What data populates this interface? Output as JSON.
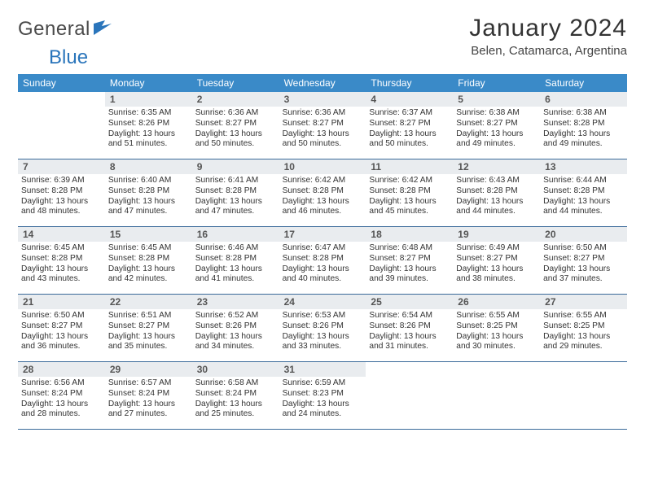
{
  "brand": {
    "part1": "General",
    "part2": "Blue"
  },
  "title": "January 2024",
  "location": "Belen, Catamarca, Argentina",
  "colors": {
    "header_bar": "#3a8ac8",
    "week_divider": "#3a6a9a",
    "daynum_bg": "#e9ecef",
    "text": "#333333",
    "brand_gray": "#4a4a4a",
    "brand_blue": "#2a75bb",
    "background": "#ffffff"
  },
  "weekdays": [
    "Sunday",
    "Monday",
    "Tuesday",
    "Wednesday",
    "Thursday",
    "Friday",
    "Saturday"
  ],
  "weeks": [
    [
      {
        "day": "",
        "sunrise": "",
        "sunset": "",
        "daylight1": "",
        "daylight2": ""
      },
      {
        "day": "1",
        "sunrise": "Sunrise: 6:35 AM",
        "sunset": "Sunset: 8:26 PM",
        "daylight1": "Daylight: 13 hours",
        "daylight2": "and 51 minutes."
      },
      {
        "day": "2",
        "sunrise": "Sunrise: 6:36 AM",
        "sunset": "Sunset: 8:27 PM",
        "daylight1": "Daylight: 13 hours",
        "daylight2": "and 50 minutes."
      },
      {
        "day": "3",
        "sunrise": "Sunrise: 6:36 AM",
        "sunset": "Sunset: 8:27 PM",
        "daylight1": "Daylight: 13 hours",
        "daylight2": "and 50 minutes."
      },
      {
        "day": "4",
        "sunrise": "Sunrise: 6:37 AM",
        "sunset": "Sunset: 8:27 PM",
        "daylight1": "Daylight: 13 hours",
        "daylight2": "and 50 minutes."
      },
      {
        "day": "5",
        "sunrise": "Sunrise: 6:38 AM",
        "sunset": "Sunset: 8:27 PM",
        "daylight1": "Daylight: 13 hours",
        "daylight2": "and 49 minutes."
      },
      {
        "day": "6",
        "sunrise": "Sunrise: 6:38 AM",
        "sunset": "Sunset: 8:28 PM",
        "daylight1": "Daylight: 13 hours",
        "daylight2": "and 49 minutes."
      }
    ],
    [
      {
        "day": "7",
        "sunrise": "Sunrise: 6:39 AM",
        "sunset": "Sunset: 8:28 PM",
        "daylight1": "Daylight: 13 hours",
        "daylight2": "and 48 minutes."
      },
      {
        "day": "8",
        "sunrise": "Sunrise: 6:40 AM",
        "sunset": "Sunset: 8:28 PM",
        "daylight1": "Daylight: 13 hours",
        "daylight2": "and 47 minutes."
      },
      {
        "day": "9",
        "sunrise": "Sunrise: 6:41 AM",
        "sunset": "Sunset: 8:28 PM",
        "daylight1": "Daylight: 13 hours",
        "daylight2": "and 47 minutes."
      },
      {
        "day": "10",
        "sunrise": "Sunrise: 6:42 AM",
        "sunset": "Sunset: 8:28 PM",
        "daylight1": "Daylight: 13 hours",
        "daylight2": "and 46 minutes."
      },
      {
        "day": "11",
        "sunrise": "Sunrise: 6:42 AM",
        "sunset": "Sunset: 8:28 PM",
        "daylight1": "Daylight: 13 hours",
        "daylight2": "and 45 minutes."
      },
      {
        "day": "12",
        "sunrise": "Sunrise: 6:43 AM",
        "sunset": "Sunset: 8:28 PM",
        "daylight1": "Daylight: 13 hours",
        "daylight2": "and 44 minutes."
      },
      {
        "day": "13",
        "sunrise": "Sunrise: 6:44 AM",
        "sunset": "Sunset: 8:28 PM",
        "daylight1": "Daylight: 13 hours",
        "daylight2": "and 44 minutes."
      }
    ],
    [
      {
        "day": "14",
        "sunrise": "Sunrise: 6:45 AM",
        "sunset": "Sunset: 8:28 PM",
        "daylight1": "Daylight: 13 hours",
        "daylight2": "and 43 minutes."
      },
      {
        "day": "15",
        "sunrise": "Sunrise: 6:45 AM",
        "sunset": "Sunset: 8:28 PM",
        "daylight1": "Daylight: 13 hours",
        "daylight2": "and 42 minutes."
      },
      {
        "day": "16",
        "sunrise": "Sunrise: 6:46 AM",
        "sunset": "Sunset: 8:28 PM",
        "daylight1": "Daylight: 13 hours",
        "daylight2": "and 41 minutes."
      },
      {
        "day": "17",
        "sunrise": "Sunrise: 6:47 AM",
        "sunset": "Sunset: 8:28 PM",
        "daylight1": "Daylight: 13 hours",
        "daylight2": "and 40 minutes."
      },
      {
        "day": "18",
        "sunrise": "Sunrise: 6:48 AM",
        "sunset": "Sunset: 8:27 PM",
        "daylight1": "Daylight: 13 hours",
        "daylight2": "and 39 minutes."
      },
      {
        "day": "19",
        "sunrise": "Sunrise: 6:49 AM",
        "sunset": "Sunset: 8:27 PM",
        "daylight1": "Daylight: 13 hours",
        "daylight2": "and 38 minutes."
      },
      {
        "day": "20",
        "sunrise": "Sunrise: 6:50 AM",
        "sunset": "Sunset: 8:27 PM",
        "daylight1": "Daylight: 13 hours",
        "daylight2": "and 37 minutes."
      }
    ],
    [
      {
        "day": "21",
        "sunrise": "Sunrise: 6:50 AM",
        "sunset": "Sunset: 8:27 PM",
        "daylight1": "Daylight: 13 hours",
        "daylight2": "and 36 minutes."
      },
      {
        "day": "22",
        "sunrise": "Sunrise: 6:51 AM",
        "sunset": "Sunset: 8:27 PM",
        "daylight1": "Daylight: 13 hours",
        "daylight2": "and 35 minutes."
      },
      {
        "day": "23",
        "sunrise": "Sunrise: 6:52 AM",
        "sunset": "Sunset: 8:26 PM",
        "daylight1": "Daylight: 13 hours",
        "daylight2": "and 34 minutes."
      },
      {
        "day": "24",
        "sunrise": "Sunrise: 6:53 AM",
        "sunset": "Sunset: 8:26 PM",
        "daylight1": "Daylight: 13 hours",
        "daylight2": "and 33 minutes."
      },
      {
        "day": "25",
        "sunrise": "Sunrise: 6:54 AM",
        "sunset": "Sunset: 8:26 PM",
        "daylight1": "Daylight: 13 hours",
        "daylight2": "and 31 minutes."
      },
      {
        "day": "26",
        "sunrise": "Sunrise: 6:55 AM",
        "sunset": "Sunset: 8:25 PM",
        "daylight1": "Daylight: 13 hours",
        "daylight2": "and 30 minutes."
      },
      {
        "day": "27",
        "sunrise": "Sunrise: 6:55 AM",
        "sunset": "Sunset: 8:25 PM",
        "daylight1": "Daylight: 13 hours",
        "daylight2": "and 29 minutes."
      }
    ],
    [
      {
        "day": "28",
        "sunrise": "Sunrise: 6:56 AM",
        "sunset": "Sunset: 8:24 PM",
        "daylight1": "Daylight: 13 hours",
        "daylight2": "and 28 minutes."
      },
      {
        "day": "29",
        "sunrise": "Sunrise: 6:57 AM",
        "sunset": "Sunset: 8:24 PM",
        "daylight1": "Daylight: 13 hours",
        "daylight2": "and 27 minutes."
      },
      {
        "day": "30",
        "sunrise": "Sunrise: 6:58 AM",
        "sunset": "Sunset: 8:24 PM",
        "daylight1": "Daylight: 13 hours",
        "daylight2": "and 25 minutes."
      },
      {
        "day": "31",
        "sunrise": "Sunrise: 6:59 AM",
        "sunset": "Sunset: 8:23 PM",
        "daylight1": "Daylight: 13 hours",
        "daylight2": "and 24 minutes."
      },
      {
        "day": "",
        "sunrise": "",
        "sunset": "",
        "daylight1": "",
        "daylight2": ""
      },
      {
        "day": "",
        "sunrise": "",
        "sunset": "",
        "daylight1": "",
        "daylight2": ""
      },
      {
        "day": "",
        "sunrise": "",
        "sunset": "",
        "daylight1": "",
        "daylight2": ""
      }
    ]
  ]
}
